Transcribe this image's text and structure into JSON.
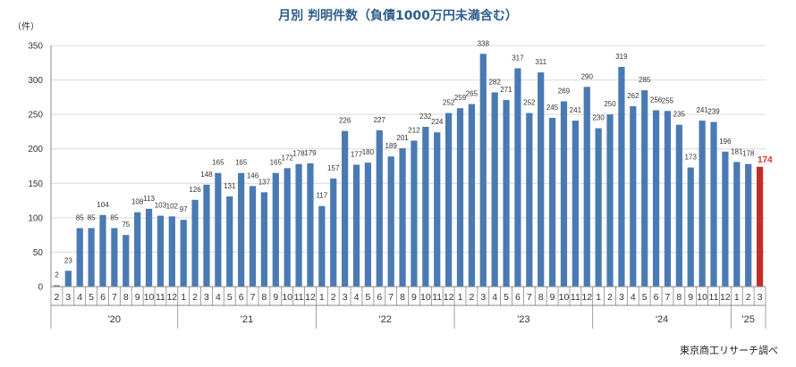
{
  "chart_data": {
    "type": "bar",
    "title": "月別 判明件数（負債1000万円未満含む）",
    "ylabel": "（件）",
    "ylim": [
      0,
      350
    ],
    "yticks": [
      0,
      50,
      100,
      150,
      200,
      250,
      300,
      350
    ],
    "grid": true,
    "source": "東京商工リサーチ調べ",
    "colors": {
      "bar": "#4a7ab3",
      "highlight": "#c0302a",
      "grid": "#d9d9d9",
      "axis": "#888888"
    },
    "years": [
      {
        "label": "'20",
        "start": 0,
        "count": 11
      },
      {
        "label": "'21",
        "start": 11,
        "count": 12
      },
      {
        "label": "'22",
        "start": 23,
        "count": 12
      },
      {
        "label": "'23",
        "start": 35,
        "count": 12
      },
      {
        "label": "'24",
        "start": 47,
        "count": 12
      },
      {
        "label": "'25",
        "start": 59,
        "count": 3
      }
    ],
    "months": [
      "2",
      "3",
      "4",
      "5",
      "6",
      "7",
      "8",
      "9",
      "10",
      "11",
      "12",
      "1",
      "2",
      "3",
      "4",
      "5",
      "6",
      "7",
      "8",
      "9",
      "10",
      "11",
      "12",
      "1",
      "2",
      "3",
      "4",
      "5",
      "6",
      "7",
      "8",
      "9",
      "10",
      "11",
      "12",
      "1",
      "2",
      "3",
      "4",
      "5",
      "6",
      "7",
      "8",
      "9",
      "10",
      "11",
      "12",
      "1",
      "2",
      "3",
      "4",
      "5",
      "6",
      "7",
      "8",
      "9",
      "10",
      "11",
      "12",
      "1",
      "2",
      "3"
    ],
    "values": [
      2,
      23,
      85,
      85,
      104,
      85,
      75,
      108,
      113,
      103,
      102,
      97,
      126,
      148,
      165,
      131,
      165,
      146,
      137,
      165,
      172,
      178,
      179,
      117,
      157,
      226,
      177,
      180,
      227,
      189,
      201,
      212,
      232,
      224,
      252,
      259,
      265,
      338,
      282,
      271,
      317,
      252,
      311,
      245,
      269,
      241,
      290,
      230,
      250,
      319,
      262,
      285,
      256,
      255,
      235,
      173,
      241,
      239,
      196,
      181,
      178,
      174
    ],
    "highlight_index": 61
  }
}
